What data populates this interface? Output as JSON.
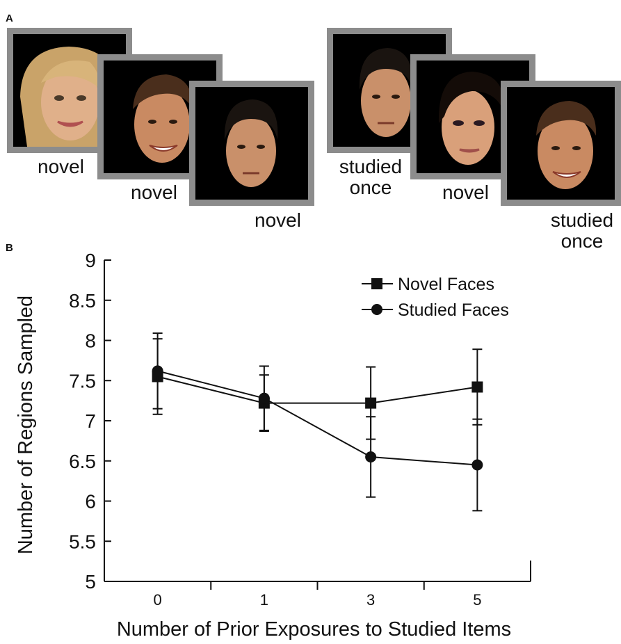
{
  "panel_a": {
    "label": "A",
    "sequences": [
      {
        "faces": [
          {
            "status": "novel",
            "description": "blonde-woman-face"
          },
          {
            "status": "novel",
            "description": "smiling-man-face"
          },
          {
            "status": "novel",
            "description": "neutral-man-face"
          }
        ]
      },
      {
        "faces": [
          {
            "status": "studied once",
            "status_line1": "studied",
            "status_line2": "once",
            "description": "neutral-man-face"
          },
          {
            "status": "novel",
            "description": "dark-haired-woman-face"
          },
          {
            "status": "studied once",
            "status_line1": "studied",
            "status_line2": "once",
            "description": "smiling-man-face"
          }
        ]
      }
    ]
  },
  "panel_b": {
    "label": "B"
  },
  "colors": {
    "frame": "#8c8c8c",
    "photo_background": "#000000",
    "line": "#111111"
  },
  "chart_data": {
    "type": "line",
    "xlabel": "Number of Prior Exposures to Studied Items",
    "ylabel": "Number of Regions Sampled",
    "categories": [
      "0",
      "1",
      "3",
      "5"
    ],
    "ylim": [
      5,
      9
    ],
    "yticks": [
      "5",
      "5.5",
      "6",
      "6.5",
      "7",
      "7.5",
      "8",
      "8.5",
      "9"
    ],
    "legend_position": "top-right",
    "grid": false,
    "series": [
      {
        "name": "Novel Faces",
        "marker": "square",
        "values": [
          7.55,
          7.22,
          7.22,
          7.42
        ],
        "errors": [
          0.47,
          0.35,
          0.45,
          0.47
        ]
      },
      {
        "name": "Studied Faces",
        "marker": "circle",
        "values": [
          7.62,
          7.28,
          6.55,
          6.45
        ],
        "errors": [
          0.47,
          0.4,
          0.5,
          0.57
        ]
      }
    ]
  }
}
